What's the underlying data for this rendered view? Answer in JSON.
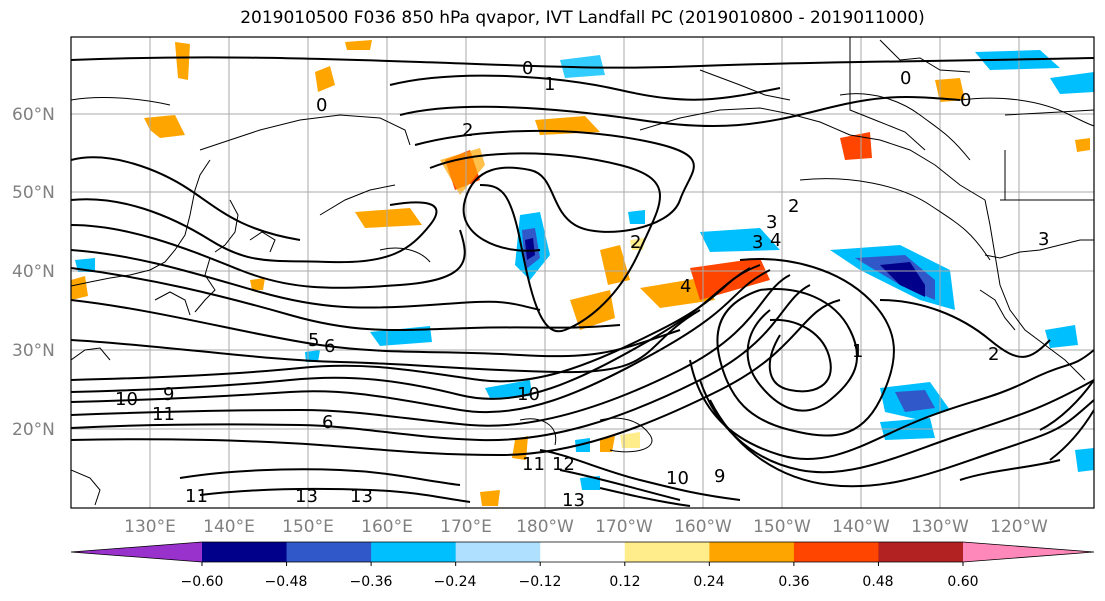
{
  "title": "2019010500 F036 850 hPa qvapor, IVT Landfall PC (2019010800 - 2019011000)",
  "lat_labels": [
    "60°N",
    "50°N",
    "40°N",
    "30°N",
    "20°N"
  ],
  "lon_labels": [
    "130°E",
    "140°E",
    "150°E",
    "160°E",
    "170°E",
    "180°W",
    "170°W",
    "160°W",
    "150°W",
    "140°W",
    "130°W",
    "120°W"
  ],
  "colorbar": {
    "colors": [
      "#9932cc",
      "#00008b",
      "#3158c8",
      "#00bfff",
      "#b0e0ff",
      "#ffffff",
      "#ffec8b",
      "#ffa500",
      "#ff4500",
      "#b22222",
      "#ff88bb"
    ],
    "tick_labels": [
      "−0.60",
      "−0.48",
      "−0.36",
      "−0.24",
      "−0.12",
      "0.12",
      "0.24",
      "0.36",
      "0.48",
      "0.60"
    ]
  },
  "contour_labels": [
    "0",
    "0",
    "0",
    "0",
    "1",
    "1",
    "2",
    "2",
    "2",
    "2",
    "3",
    "3",
    "3",
    "4",
    "4",
    "5",
    "6",
    "6",
    "9",
    "9",
    "10",
    "10",
    "10",
    "11",
    "11",
    "11",
    "12",
    "13",
    "13",
    "13"
  ]
}
